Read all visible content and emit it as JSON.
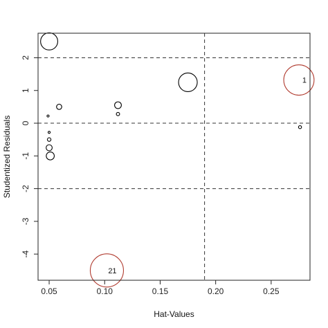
{
  "chart_data": {
    "type": "scatter",
    "title": "",
    "xlabel": "Hat-Values",
    "ylabel": "Studentized Residuals",
    "xlim": [
      0.04,
      0.285
    ],
    "ylim": [
      -4.8,
      2.75
    ],
    "x_ticks": [
      0.05,
      0.1,
      0.15,
      0.2,
      0.25
    ],
    "x_tick_labels": [
      "0.05",
      "0.10",
      "0.15",
      "0.20",
      "0.25"
    ],
    "y_ticks": [
      -4,
      -3,
      -2,
      -1,
      0,
      1,
      2
    ],
    "y_tick_labels": [
      "-4",
      "-3",
      "-2",
      "-1",
      "0",
      "1",
      "2"
    ],
    "reference_lines": {
      "horizontal": [
        -2,
        0,
        2
      ],
      "vertical": [
        0.19
      ],
      "style": "dashed"
    },
    "grid": false,
    "points": [
      {
        "x": 0.05,
        "y": 2.5,
        "cook": 0.32,
        "color": "#000000",
        "label": ""
      },
      {
        "x": 0.175,
        "y": 1.25,
        "cook": 0.38,
        "color": "#000000",
        "label": ""
      },
      {
        "x": 0.275,
        "y": 1.32,
        "cook": 1.0,
        "color": "#b03a2e",
        "label": "1"
      },
      {
        "x": 0.059,
        "y": 0.5,
        "cook": 0.03,
        "color": "#000000",
        "label": ""
      },
      {
        "x": 0.112,
        "y": 0.55,
        "cook": 0.05,
        "color": "#000000",
        "label": ""
      },
      {
        "x": 0.112,
        "y": 0.28,
        "cook": 0.012,
        "color": "#000000",
        "label": ""
      },
      {
        "x": 0.049,
        "y": 0.22,
        "cook": 0.003,
        "color": "#000000",
        "label": ""
      },
      {
        "x": 0.05,
        "y": -0.28,
        "cook": 0.005,
        "color": "#000000",
        "label": ""
      },
      {
        "x": 0.05,
        "y": -0.5,
        "cook": 0.014,
        "color": "#000000",
        "label": ""
      },
      {
        "x": 0.05,
        "y": -0.75,
        "cook": 0.04,
        "color": "#000000",
        "label": ""
      },
      {
        "x": 0.051,
        "y": -1.0,
        "cook": 0.07,
        "color": "#000000",
        "label": ""
      },
      {
        "x": 0.276,
        "y": -0.12,
        "cook": 0.01,
        "color": "#000000",
        "label": ""
      },
      {
        "x": 0.102,
        "y": -4.5,
        "cook": 1.2,
        "color": "#b03a2e",
        "label": "21"
      }
    ]
  }
}
